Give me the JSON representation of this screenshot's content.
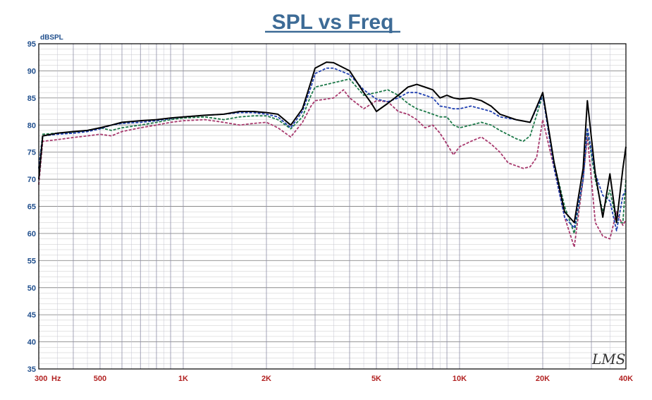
{
  "chart_data": {
    "type": "line",
    "title": "SPL vs Freq",
    "ylabel": "dBSPL",
    "xlabel": "",
    "x_scale": "log",
    "xlim": [
      300,
      40000
    ],
    "ylim": [
      35,
      95
    ],
    "yticks": [
      35,
      40,
      45,
      50,
      55,
      60,
      65,
      70,
      75,
      80,
      85,
      90,
      95
    ],
    "xticks": [
      {
        "value": 300,
        "label": "300"
      },
      {
        "value": 500,
        "label": "500"
      },
      {
        "value": 1000,
        "label": "1K"
      },
      {
        "value": 2000,
        "label": "2K"
      },
      {
        "value": 5000,
        "label": "5K"
      },
      {
        "value": 10000,
        "label": "10K"
      },
      {
        "value": 20000,
        "label": "20K"
      },
      {
        "value": 40000,
        "label": "40K"
      }
    ],
    "x_unit_label": "Hz",
    "grid": true,
    "watermark": "LMS",
    "series": [
      {
        "color": "#000000",
        "dash": "solid",
        "points": [
          [
            300,
            70
          ],
          [
            310,
            78
          ],
          [
            350,
            78.5
          ],
          [
            400,
            78.8
          ],
          [
            450,
            79
          ],
          [
            500,
            79.5
          ],
          [
            550,
            80
          ],
          [
            600,
            80.5
          ],
          [
            700,
            80.8
          ],
          [
            800,
            81
          ],
          [
            900,
            81.3
          ],
          [
            1000,
            81.5
          ],
          [
            1200,
            81.8
          ],
          [
            1400,
            82
          ],
          [
            1600,
            82.5
          ],
          [
            1800,
            82.5
          ],
          [
            2000,
            82.3
          ],
          [
            2200,
            82
          ],
          [
            2450,
            80
          ],
          [
            2700,
            83
          ],
          [
            2900,
            88
          ],
          [
            3000,
            90.5
          ],
          [
            3300,
            91.6
          ],
          [
            3500,
            91.5
          ],
          [
            4000,
            90
          ],
          [
            4500,
            86
          ],
          [
            4800,
            84
          ],
          [
            5000,
            82.5
          ],
          [
            5500,
            84
          ],
          [
            6000,
            85.5
          ],
          [
            6500,
            87
          ],
          [
            7000,
            87.5
          ],
          [
            7500,
            87
          ],
          [
            8000,
            86.5
          ],
          [
            8500,
            85
          ],
          [
            9000,
            85.5
          ],
          [
            9500,
            85
          ],
          [
            10000,
            84.8
          ],
          [
            11000,
            85
          ],
          [
            12000,
            84.5
          ],
          [
            13000,
            83.5
          ],
          [
            14000,
            82
          ],
          [
            16000,
            81
          ],
          [
            18000,
            80.5
          ],
          [
            20000,
            86
          ],
          [
            22000,
            73
          ],
          [
            24000,
            64
          ],
          [
            26000,
            62
          ],
          [
            28000,
            72
          ],
          [
            29000,
            84.5
          ],
          [
            31000,
            71
          ],
          [
            33000,
            63
          ],
          [
            35000,
            71
          ],
          [
            37000,
            62
          ],
          [
            39000,
            72
          ],
          [
            40000,
            76
          ]
        ]
      },
      {
        "color": "#1f3fb0",
        "dash": "dashed",
        "points": [
          [
            300,
            72
          ],
          [
            310,
            78
          ],
          [
            350,
            78.3
          ],
          [
            400,
            78.5
          ],
          [
            450,
            78.8
          ],
          [
            500,
            79.3
          ],
          [
            550,
            80
          ],
          [
            600,
            80.3
          ],
          [
            700,
            80.5
          ],
          [
            800,
            80.8
          ],
          [
            900,
            81.2
          ],
          [
            1000,
            81.5
          ],
          [
            1200,
            81.8
          ],
          [
            1400,
            82
          ],
          [
            1600,
            82.3
          ],
          [
            1800,
            82.3
          ],
          [
            2000,
            82
          ],
          [
            2200,
            81.5
          ],
          [
            2450,
            79.5
          ],
          [
            2700,
            82.5
          ],
          [
            2900,
            87
          ],
          [
            3000,
            89.5
          ],
          [
            3300,
            90.5
          ],
          [
            3500,
            90.5
          ],
          [
            4000,
            89.3
          ],
          [
            4500,
            86.5
          ],
          [
            5000,
            84.8
          ],
          [
            5500,
            84.3
          ],
          [
            6000,
            85
          ],
          [
            6500,
            86
          ],
          [
            7000,
            86
          ],
          [
            7500,
            85.5
          ],
          [
            8000,
            85
          ],
          [
            8500,
            83.5
          ],
          [
            9000,
            83.3
          ],
          [
            9500,
            83
          ],
          [
            10000,
            83
          ],
          [
            11000,
            83.5
          ],
          [
            12000,
            83
          ],
          [
            13000,
            82.5
          ],
          [
            14000,
            81.5
          ],
          [
            16000,
            81
          ],
          [
            18000,
            80.5
          ],
          [
            20000,
            85.5
          ],
          [
            22000,
            72
          ],
          [
            24000,
            63
          ],
          [
            26000,
            61
          ],
          [
            28000,
            70
          ],
          [
            29000,
            79.5
          ],
          [
            31000,
            71
          ],
          [
            33000,
            67
          ],
          [
            35000,
            66
          ],
          [
            37000,
            60.5
          ],
          [
            39000,
            67
          ],
          [
            40000,
            68
          ]
        ]
      },
      {
        "color": "#1e7a4a",
        "dash": "dashed",
        "points": [
          [
            300,
            72
          ],
          [
            310,
            78.3
          ],
          [
            350,
            78.5
          ],
          [
            400,
            78.7
          ],
          [
            450,
            79
          ],
          [
            500,
            79.5
          ],
          [
            550,
            79
          ],
          [
            600,
            79.5
          ],
          [
            700,
            80
          ],
          [
            800,
            80.5
          ],
          [
            900,
            81
          ],
          [
            1000,
            81.3
          ],
          [
            1200,
            81.5
          ],
          [
            1400,
            81
          ],
          [
            1600,
            81.5
          ],
          [
            1800,
            81.7
          ],
          [
            2000,
            81.7
          ],
          [
            2200,
            81
          ],
          [
            2450,
            79.3
          ],
          [
            2700,
            81.5
          ],
          [
            2900,
            85.5
          ],
          [
            3000,
            87
          ],
          [
            3300,
            87.5
          ],
          [
            3500,
            87.8
          ],
          [
            4000,
            88.5
          ],
          [
            4500,
            85.5
          ],
          [
            5000,
            86
          ],
          [
            5500,
            86.5
          ],
          [
            6000,
            85.5
          ],
          [
            6500,
            84
          ],
          [
            7000,
            83
          ],
          [
            7500,
            82.5
          ],
          [
            8000,
            82
          ],
          [
            8500,
            81.5
          ],
          [
            9000,
            81.5
          ],
          [
            9500,
            80
          ],
          [
            10000,
            79.5
          ],
          [
            11000,
            80
          ],
          [
            12000,
            80.5
          ],
          [
            13000,
            80
          ],
          [
            14000,
            79
          ],
          [
            16000,
            77.5
          ],
          [
            17000,
            77
          ],
          [
            18000,
            78
          ],
          [
            20000,
            85.5
          ],
          [
            22000,
            73
          ],
          [
            24000,
            65
          ],
          [
            26000,
            60
          ],
          [
            28000,
            70
          ],
          [
            29000,
            79
          ],
          [
            31000,
            70
          ],
          [
            33000,
            64
          ],
          [
            35000,
            68
          ],
          [
            37000,
            62
          ],
          [
            39000,
            62
          ],
          [
            40000,
            70
          ]
        ]
      },
      {
        "color": "#a83a6e",
        "dash": "dashed",
        "points": [
          [
            300,
            69
          ],
          [
            310,
            77
          ],
          [
            350,
            77.3
          ],
          [
            400,
            77.7
          ],
          [
            450,
            78
          ],
          [
            500,
            78.3
          ],
          [
            550,
            78
          ],
          [
            600,
            78.8
          ],
          [
            700,
            79.5
          ],
          [
            800,
            80
          ],
          [
            900,
            80.5
          ],
          [
            1000,
            80.8
          ],
          [
            1200,
            81
          ],
          [
            1400,
            80.5
          ],
          [
            1600,
            80
          ],
          [
            1800,
            80.3
          ],
          [
            2000,
            80.5
          ],
          [
            2200,
            79.5
          ],
          [
            2450,
            77.8
          ],
          [
            2700,
            80.5
          ],
          [
            2900,
            83.5
          ],
          [
            3000,
            84.5
          ],
          [
            3300,
            84.8
          ],
          [
            3500,
            85
          ],
          [
            3800,
            86.5
          ],
          [
            4000,
            85
          ],
          [
            4500,
            83
          ],
          [
            5000,
            84.5
          ],
          [
            5500,
            84.3
          ],
          [
            6000,
            82.5
          ],
          [
            6500,
            82
          ],
          [
            7000,
            81
          ],
          [
            7500,
            79.5
          ],
          [
            8000,
            80
          ],
          [
            8500,
            78.5
          ],
          [
            9000,
            76.5
          ],
          [
            9500,
            74.5
          ],
          [
            10000,
            76
          ],
          [
            11000,
            77
          ],
          [
            12000,
            77.8
          ],
          [
            13000,
            76.5
          ],
          [
            14000,
            75
          ],
          [
            15000,
            73
          ],
          [
            16000,
            72.5
          ],
          [
            17000,
            72
          ],
          [
            18000,
            72.3
          ],
          [
            19000,
            74
          ],
          [
            20000,
            81
          ],
          [
            22000,
            72
          ],
          [
            24000,
            63
          ],
          [
            26000,
            57.5
          ],
          [
            28000,
            70
          ],
          [
            29000,
            78
          ],
          [
            31000,
            62
          ],
          [
            33000,
            59.5
          ],
          [
            35000,
            59
          ],
          [
            37000,
            64
          ],
          [
            39000,
            61.5
          ],
          [
            40000,
            62.5
          ]
        ]
      }
    ]
  }
}
